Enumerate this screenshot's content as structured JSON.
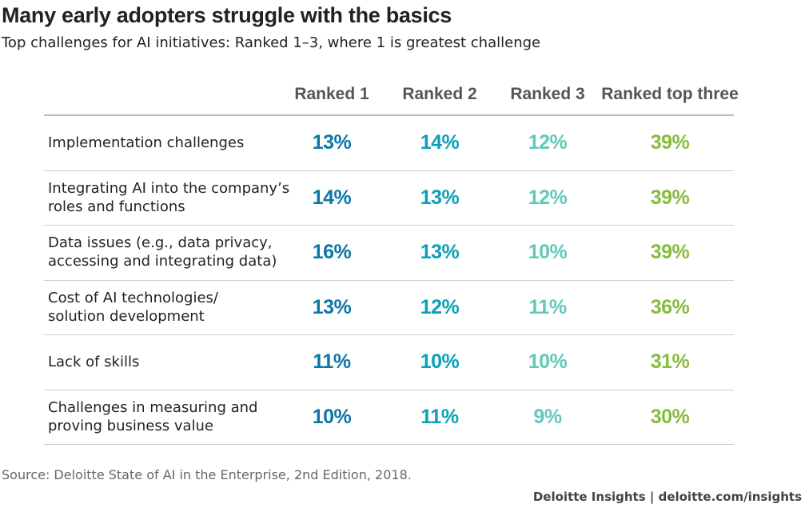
{
  "title": "Many early adopters struggle with the basics",
  "subtitle": "Top challenges for AI initiatives: Ranked 1–3, where 1 is greatest challenge",
  "table": {
    "columns": [
      "Ranked 1",
      "Ranked 2",
      "Ranked 3",
      "Ranked top three"
    ],
    "rows": [
      {
        "label": [
          "Implementation challenges"
        ],
        "cells": [
          "13%",
          "14%",
          "12%",
          "39%"
        ]
      },
      {
        "label": [
          "Integrating AI into the company’s",
          "roles and functions"
        ],
        "cells": [
          "14%",
          "13%",
          "12%",
          "39%"
        ]
      },
      {
        "label": [
          "Data issues (e.g., data privacy,",
          "accessing and integrating data)"
        ],
        "cells": [
          "16%",
          "13%",
          "10%",
          "39%"
        ]
      },
      {
        "label": [
          "Cost of AI technologies/",
          "solution development"
        ],
        "cells": [
          "13%",
          "12%",
          "11%",
          "36%"
        ]
      },
      {
        "label": [
          "Lack of skills"
        ],
        "cells": [
          "11%",
          "10%",
          "10%",
          "31%"
        ]
      },
      {
        "label": [
          "Challenges in measuring and",
          "proving business value"
        ],
        "cells": [
          "10%",
          "11%",
          "9%",
          "30%"
        ]
      }
    ]
  },
  "source": "Source: Deloitte State of AI in the Enterprise, 2nd Edition, 2018.",
  "footer": "Deloitte Insights | deloitte.com/insights"
}
